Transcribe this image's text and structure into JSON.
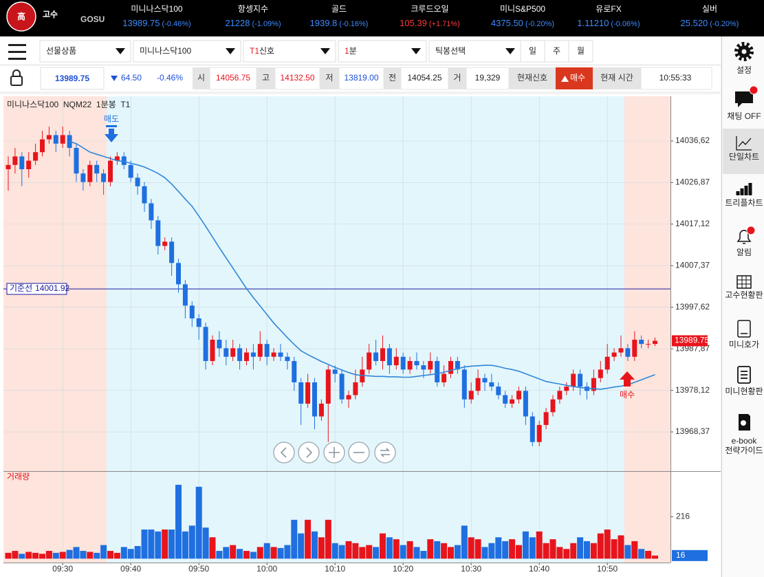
{
  "header": {
    "logo_mark": "高",
    "logo": "고수",
    "logo_sub": "GOSU",
    "tickers": [
      {
        "name": "미니나스닥100",
        "price": "13989.75",
        "change": "(-0.46%)",
        "color": "#3d8bff"
      },
      {
        "name": "항셍지수",
        "price": "21228",
        "change": "(-1.09%)",
        "color": "#3d8bff"
      },
      {
        "name": "골드",
        "price": "1939.8",
        "change": "(-0.16%)",
        "color": "#3d8bff"
      },
      {
        "name": "크루드오일",
        "price": "105.39",
        "change": "(+1.71%)",
        "color": "#ff3b3b"
      },
      {
        "name": "미니S&P500",
        "price": "4375.50",
        "change": "(-0.20%)",
        "color": "#3d8bff"
      },
      {
        "name": "유로FX",
        "price": "1.11210",
        "change": "(-0.06%)",
        "color": "#3d8bff"
      },
      {
        "name": "실버",
        "price": "25.520",
        "change": "(-0.20%)",
        "color": "#3d8bff"
      }
    ]
  },
  "toolbar": {
    "selects": [
      "선물상품",
      "미니나스닥100",
      [
        "T1",
        "신호"
      ],
      [
        "1",
        "분"
      ],
      "틱봉선택"
    ],
    "periods": [
      "일",
      "주",
      "월"
    ]
  },
  "quote": {
    "price": "13989.75",
    "change": "64.50",
    "change_pct": "-0.46%",
    "fields": [
      {
        "label": "시",
        "value": "14056.75",
        "color": "#e8141c"
      },
      {
        "label": "고",
        "value": "14132.50",
        "color": "#e8141c"
      },
      {
        "label": "저",
        "value": "13819.00",
        "color": "#1d4fd8"
      },
      {
        "label": "전",
        "value": "14054.25",
        "color": "#222222"
      },
      {
        "label": "거",
        "value": "19,329",
        "color": "#222222"
      }
    ],
    "signal_label": "현재신호",
    "signal": "매수",
    "time_label": "현재 시간",
    "time": "10:55:33"
  },
  "sidebar": [
    "설정",
    "채팅 OFF",
    "단일차트",
    "트리플차트",
    "알림",
    "고수현황판",
    "미니호가",
    "미니현황판",
    [
      "e-book",
      "전략가이드"
    ]
  ],
  "chart_data": {
    "type": "candlestick",
    "title": "미니나스닥100  NQM22  1분봉  T1",
    "categories": [
      null,
      null,
      null,
      null,
      null,
      null,
      null,
      null,
      "09:30",
      null,
      null,
      null,
      null,
      null,
      null,
      null,
      null,
      null,
      "09:40",
      null,
      null,
      null,
      null,
      null,
      null,
      null,
      null,
      null,
      "09:50",
      null,
      null,
      null,
      null,
      null,
      null,
      null,
      null,
      null,
      "10:00",
      null,
      null,
      null,
      null,
      null,
      null,
      null,
      null,
      null,
      "10:10",
      null,
      null,
      null,
      null,
      null,
      null,
      null,
      null,
      null,
      "10:20",
      null,
      null,
      null,
      null,
      null,
      null,
      null,
      null,
      null,
      "10:30",
      null,
      null,
      null,
      null,
      null,
      null,
      null,
      null,
      null,
      "10:40",
      null,
      null,
      null,
      null,
      null,
      null,
      null,
      null,
      null,
      "10:50",
      null,
      null,
      null,
      null,
      null,
      null,
      null
    ],
    "ohlc": [
      [
        14030,
        14033,
        14025,
        14031
      ],
      [
        14031,
        14035,
        14029,
        14033
      ],
      [
        14033,
        14034,
        14026,
        14030
      ],
      [
        14030,
        14034,
        14028,
        14032
      ],
      [
        14032,
        14036,
        14031,
        14034
      ],
      [
        14034,
        14039,
        14033,
        14037
      ],
      [
        14037,
        14040,
        14036,
        14038
      ],
      [
        14038,
        14039,
        14034,
        14036
      ],
      [
        14036,
        14040,
        14035,
        14038
      ],
      [
        14038,
        14039,
        14033,
        14035
      ],
      [
        14035,
        14036,
        14027,
        14029
      ],
      [
        14029,
        14030,
        14025,
        14027
      ],
      [
        14027,
        14032,
        14026,
        14031
      ],
      [
        14031,
        14032,
        14027,
        14029
      ],
      [
        14029,
        14030,
        14024,
        14027
      ],
      [
        14027,
        14033,
        14026,
        14032
      ],
      [
        14032,
        14034,
        14031,
        14033
      ],
      [
        14033,
        14034,
        14030,
        14031
      ],
      [
        14031,
        14032,
        14027,
        14028
      ],
      [
        14028,
        14029,
        14024,
        14026
      ],
      [
        14026,
        14027,
        14020,
        14022
      ],
      [
        14022,
        14023,
        14016,
        14018
      ],
      [
        14018,
        14019,
        14010,
        14012
      ],
      [
        14012,
        14014,
        14011,
        14013
      ],
      [
        14013,
        14014,
        14005,
        14008
      ],
      [
        14008,
        14009,
        14001,
        14003
      ],
      [
        14003,
        14004,
        13995,
        13998
      ],
      [
        13998,
        13999,
        13993,
        13995
      ],
      [
        13995,
        13996,
        13990,
        13993
      ],
      [
        13993,
        13994,
        13983,
        13985
      ],
      [
        13985,
        13991,
        13984,
        13990
      ],
      [
        13990,
        13992,
        13986,
        13988
      ],
      [
        13988,
        13990,
        13984,
        13986
      ],
      [
        13986,
        13990,
        13985,
        13988
      ],
      [
        13988,
        13989,
        13983,
        13985
      ],
      [
        13985,
        13988,
        13984,
        13987
      ],
      [
        13987,
        13989,
        13983,
        13986
      ],
      [
        13986,
        13992,
        13985,
        13989
      ],
      [
        13989,
        13990,
        13984,
        13986
      ],
      [
        13986,
        13988,
        13985,
        13987
      ],
      [
        13987,
        13989,
        13985,
        13986
      ],
      [
        13986,
        13987,
        13983,
        13985
      ],
      [
        13985,
        13986,
        13978,
        13980
      ],
      [
        13980,
        13981,
        13970,
        13975
      ],
      [
        13975,
        13982,
        13974,
        13980
      ],
      [
        13980,
        13981,
        13969,
        13972
      ],
      [
        13972,
        13976,
        13971,
        13975
      ],
      [
        13975,
        13984,
        13966,
        13983
      ],
      [
        13983,
        13984,
        13980,
        13982
      ],
      [
        13982,
        13983,
        13975,
        13976
      ],
      [
        13976,
        13978,
        13974,
        13977
      ],
      [
        13977,
        13983,
        13976,
        13980
      ],
      [
        13980,
        13986,
        13979,
        13983
      ],
      [
        13983,
        13989,
        13982,
        13987
      ],
      [
        13987,
        13990,
        13984,
        13985
      ],
      [
        13985,
        13991,
        13983,
        13988
      ],
      [
        13988,
        13989,
        13982,
        13984
      ],
      [
        13984,
        13988,
        13983,
        13986
      ],
      [
        13986,
        13987,
        13982,
        13983
      ],
      [
        13983,
        13986,
        13982,
        13985
      ],
      [
        13985,
        13987,
        13983,
        13984
      ],
      [
        13984,
        13985,
        13981,
        13983
      ],
      [
        13983,
        13987,
        13982,
        13985
      ],
      [
        13985,
        13986,
        13979,
        13980
      ],
      [
        13980,
        13984,
        13979,
        13982
      ],
      [
        13982,
        13986,
        13981,
        13985
      ],
      [
        13985,
        13986,
        13982,
        13983
      ],
      [
        13983,
        13984,
        13974,
        13976
      ],
      [
        13976,
        13980,
        13975,
        13978
      ],
      [
        13978,
        13983,
        13977,
        13981
      ],
      [
        13981,
        13982,
        13978,
        13980
      ],
      [
        13980,
        13982,
        13978,
        13979
      ],
      [
        13979,
        13980,
        13976,
        13977
      ],
      [
        13977,
        13978,
        13974,
        13975
      ],
      [
        13975,
        13977,
        13974,
        13976
      ],
      [
        13976,
        13979,
        13975,
        13978
      ],
      [
        13978,
        13979,
        13970,
        13972
      ],
      [
        13972,
        13973,
        13965,
        13966
      ],
      [
        13966,
        13971,
        13965,
        13970
      ],
      [
        13970,
        13974,
        13969,
        13973
      ],
      [
        13973,
        13977,
        13972,
        13976
      ],
      [
        13976,
        13979,
        13975,
        13978
      ],
      [
        13978,
        13980,
        13977,
        13979
      ],
      [
        13979,
        13983,
        13978,
        13982
      ],
      [
        13982,
        13983,
        13977,
        13979
      ],
      [
        13979,
        13980,
        13976,
        13978
      ],
      [
        13978,
        13983,
        13977,
        13981
      ],
      [
        13981,
        13985,
        13980,
        13983
      ],
      [
        13983,
        13989,
        13982,
        13986
      ],
      [
        13986,
        13988,
        13985,
        13987
      ],
      [
        13987,
        13991,
        13986,
        13988
      ],
      [
        13988,
        13989,
        13985,
        13986
      ],
      [
        13986,
        13992,
        13985,
        13990
      ],
      [
        13990,
        13991,
        13988,
        13989
      ],
      [
        13989,
        13990,
        13988,
        13989
      ],
      [
        13989,
        13990.5,
        13988.5,
        13989.75
      ]
    ],
    "up_color": "#e8141c",
    "down_color": "#1f6fe0",
    "ylim": [
      13959.34,
      14046.3
    ],
    "yticks": [
      {
        "value": 14036.62,
        "label": "14036,62"
      },
      {
        "value": 14026.87,
        "label": "14026,87"
      },
      {
        "value": 14017.12,
        "label": "14017,12"
      },
      {
        "value": 14007.37,
        "label": "14007,37"
      },
      {
        "value": 13997.62,
        "label": "13997,62"
      },
      {
        "value": 13987.87,
        "label": "13987,87"
      },
      {
        "value": 13978.12,
        "label": "13978,12"
      },
      {
        "value": 13968.37,
        "label": "13968,37"
      }
    ],
    "grid": true,
    "moving_average": {
      "color": "#2f86d8",
      "values": [
        null,
        null,
        null,
        null,
        null,
        null,
        null,
        null,
        null,
        14036.5,
        14036,
        14035,
        14034,
        14033.5,
        14033,
        14032.5,
        14032,
        14031.8,
        14031.4,
        14031,
        14030.5,
        14029.8,
        14029,
        14028,
        14026.5,
        14024.8,
        14023,
        14021.3,
        14019,
        14016.6,
        14014.1,
        14011.6,
        14009.2,
        14006.8,
        14004.4,
        14002,
        13999.9,
        13997.9,
        13995.9,
        13993.9,
        13992.2,
        13990.5,
        13988.9,
        13987.4,
        13986.5,
        13985.7,
        13984.9,
        13984.2,
        13983.5,
        13982.9,
        13982.3,
        13981.8,
        13981.6,
        13981.5,
        13981.4,
        13981.4,
        13981.3,
        13981.3,
        13981.2,
        13981.2,
        13981.4,
        13981.6,
        13981.8,
        13982,
        13982.4,
        13982.8,
        13983.2,
        13983.6,
        13983.8,
        13983.9,
        13984,
        13984,
        13983.7,
        13983.3,
        13983,
        13982.6,
        13982,
        13981.4,
        13980.8,
        13980.2,
        13979.9,
        13979.6,
        13979.3,
        13979,
        13978.8,
        13978.6,
        13978.5,
        13978.4,
        13978.6,
        13978.9,
        13979.1,
        13979.4,
        13980,
        13980.6,
        13981.2,
        13981.8
      ]
    },
    "reference_line": {
      "label": "기준선",
      "value": 14001.92,
      "color": "#1a1aa0"
    },
    "sell_signal": "매도",
    "buy_signal": "매수",
    "volume": {
      "title": "거래량",
      "ylim": [
        -20,
        440
      ],
      "yticks": [
        216
      ],
      "values": [
        30,
        40,
        25,
        35,
        30,
        25,
        40,
        30,
        35,
        45,
        60,
        40,
        35,
        30,
        70,
        40,
        30,
        60,
        50,
        65,
        150,
        150,
        140,
        150,
        150,
        380,
        140,
        170,
        370,
        160,
        110,
        40,
        60,
        70,
        50,
        40,
        35,
        60,
        80,
        60,
        55,
        70,
        200,
        130,
        200,
        140,
        110,
        200,
        80,
        70,
        90,
        80,
        60,
        70,
        60,
        130,
        110,
        100,
        70,
        90,
        60,
        40,
        100,
        90,
        80,
        60,
        70,
        170,
        110,
        100,
        60,
        80,
        110,
        90,
        100,
        70,
        140,
        110,
        140,
        80,
        100,
        60,
        50,
        80,
        110,
        90,
        80,
        130,
        150,
        100,
        120,
        70,
        90,
        50,
        40,
        16
      ]
    }
  }
}
